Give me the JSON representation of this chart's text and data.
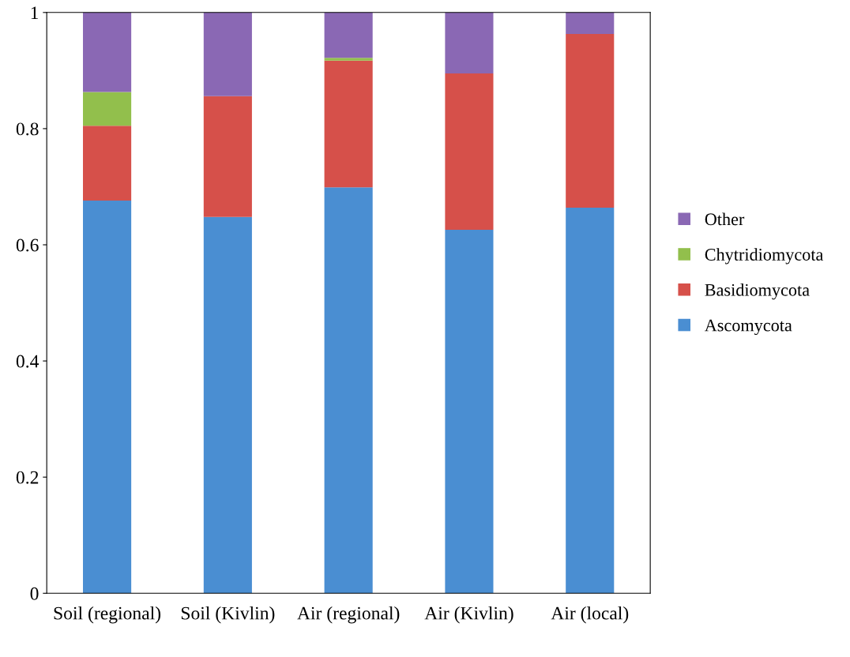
{
  "chart_data": {
    "type": "bar",
    "stacked": true,
    "categories": [
      "Soil (regional)",
      "Soil (Kivlin)",
      "Air (regional)",
      "Air (Kivlin)",
      "Air (local)"
    ],
    "series": [
      {
        "name": "Ascomycota",
        "color": "#4a8ed2",
        "values": [
          0.676,
          0.648,
          0.699,
          0.626,
          0.664
        ]
      },
      {
        "name": "Basidiomycota",
        "color": "#d6504a",
        "values": [
          0.129,
          0.208,
          0.218,
          0.269,
          0.299
        ]
      },
      {
        "name": "Chytridiomycota",
        "color": "#92bf4c",
        "values": [
          0.058,
          0,
          0.005,
          0,
          0
        ]
      },
      {
        "name": "Other",
        "color": "#8a68b4",
        "values": [
          0.137,
          0.144,
          0.078,
          0.105,
          0.037
        ]
      }
    ],
    "ylim": [
      0,
      1
    ],
    "yticks": [
      0,
      {
        "value": 0.2,
        "label": "0.2"
      },
      {
        "value": 0.4,
        "label": "0.4"
      },
      {
        "value": 0.6,
        "label": "0.6"
      },
      {
        "value": 0.8,
        "label": "0.8"
      },
      1
    ],
    "grid": false,
    "legend": "right"
  }
}
